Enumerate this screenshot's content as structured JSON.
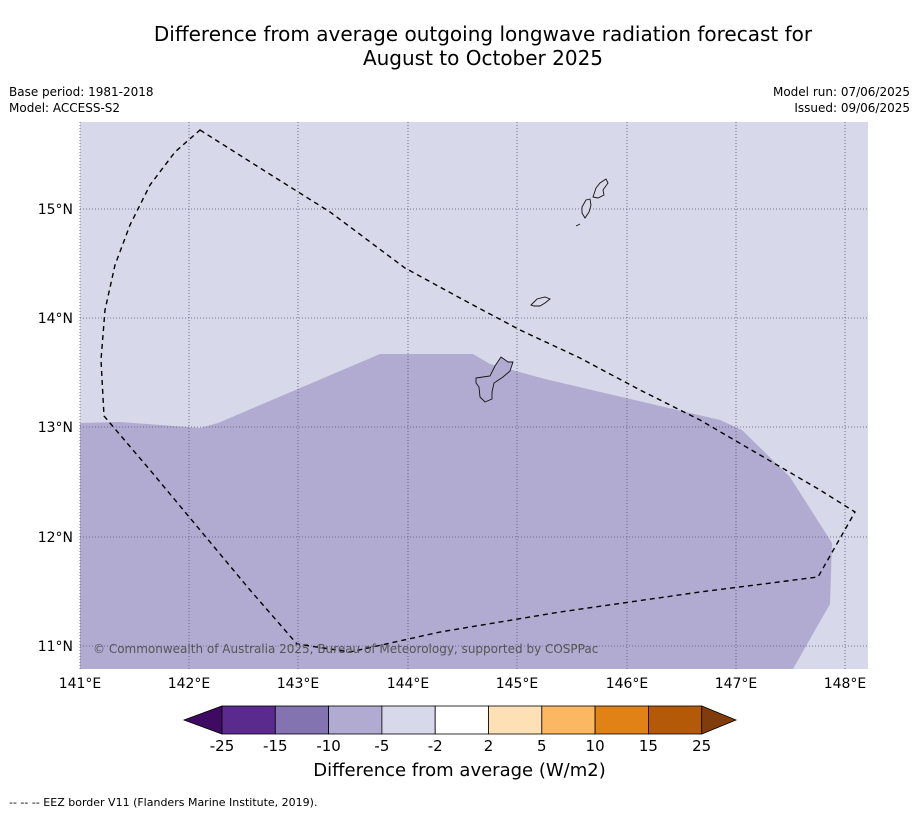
{
  "title": {
    "line1": "Difference from average outgoing longwave radiation forecast for",
    "line2": "August to October 2025"
  },
  "meta": {
    "base_period": "Base period: 1981-2018",
    "model": "Model: ACCESS-S2",
    "model_run": "Model run: 07/06/2025",
    "issued": "Issued: 09/06/2025"
  },
  "map": {
    "lon_range": [
      141.0,
      148.2
    ],
    "lat_range": [
      10.8,
      15.8
    ],
    "lon_ticks": [
      "141°E",
      "142°E",
      "143°E",
      "144°E",
      "145°E",
      "146°E",
      "147°E",
      "148°E"
    ],
    "lat_ticks": [
      "15°N",
      "14°N",
      "13°N",
      "12°N",
      "11°N"
    ],
    "background_category": "-5 to -2",
    "shaded_category": "-10 to -5",
    "copyright": "© Commonwealth of Australia 2025, Bureau of Meteorology, supported by COSPPac",
    "colors": {
      "light": "#d7d8e9",
      "medium": "#b1abd1",
      "eez_line": "#000000"
    }
  },
  "colorbar": {
    "ticks": [
      "-25",
      "-15",
      "-10",
      "-5",
      "-2",
      "2",
      "5",
      "10",
      "15",
      "25"
    ],
    "colors": [
      "#3f0b62",
      "#5b2a8e",
      "#8373b1",
      "#b1abd1",
      "#d7d8e9",
      "#ffffff",
      "#fde0b6",
      "#fbb762",
      "#e08215",
      "#b45908",
      "#7e3d0a"
    ],
    "title": "Difference from average (W/m2)"
  },
  "footnote": "--  --  -- EEZ border V11 (Flanders Marine Institute, 2019)."
}
